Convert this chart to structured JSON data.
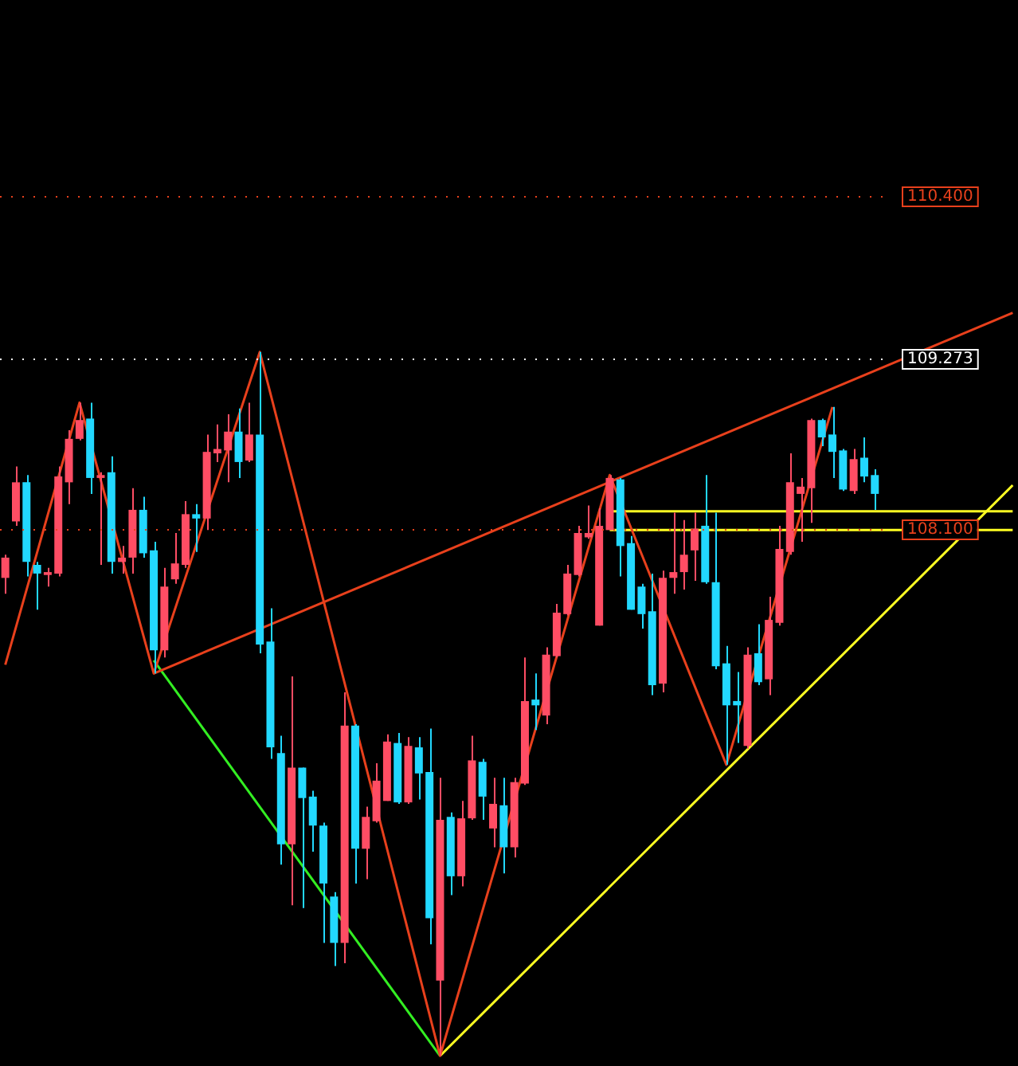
{
  "chart_data": {
    "type": "candlestick",
    "categories": [
      null,
      null,
      null,
      null,
      null,
      null,
      null,
      null,
      null,
      null,
      null,
      null,
      null,
      null,
      null,
      null,
      null,
      null,
      null,
      null,
      null,
      null,
      null,
      null,
      null,
      null,
      null,
      null,
      null,
      null,
      null,
      null,
      null,
      null,
      null,
      null,
      null,
      null,
      null,
      null,
      null,
      null,
      null,
      null,
      null,
      null,
      null,
      null,
      null,
      null,
      null,
      null,
      null,
      null,
      null,
      null,
      null,
      null,
      null,
      null,
      null,
      null,
      null,
      null,
      null,
      null,
      null,
      null,
      null,
      null,
      null,
      null,
      null,
      null,
      null,
      null,
      null,
      null,
      null,
      null,
      null,
      null,
      null,
      null,
      null,
      null,
      null,
      null,
      null,
      null,
      null,
      null,
      null,
      null,
      null,
      null
    ],
    "ohlc": [
      [
        107.76,
        107.92,
        107.65,
        107.9
      ],
      [
        108.15,
        108.53,
        108.12,
        108.42
      ],
      [
        108.42,
        108.47,
        107.77,
        107.87
      ],
      [
        107.85,
        107.87,
        107.54,
        107.79
      ],
      [
        107.78,
        107.83,
        107.7,
        107.8
      ],
      [
        107.79,
        108.53,
        107.77,
        108.46
      ],
      [
        108.42,
        108.78,
        108.27,
        108.72
      ],
      [
        108.72,
        108.97,
        108.71,
        108.85
      ],
      [
        108.86,
        108.97,
        108.34,
        108.45
      ],
      [
        108.45,
        108.49,
        107.85,
        108.47
      ],
      [
        108.49,
        108.6,
        107.79,
        107.87
      ],
      [
        107.87,
        107.98,
        107.79,
        107.9
      ],
      [
        107.9,
        108.38,
        107.79,
        108.23
      ],
      [
        108.23,
        108.32,
        107.9,
        107.93
      ],
      [
        107.95,
        108.01,
        107.1,
        107.26
      ],
      [
        107.26,
        107.83,
        107.21,
        107.7
      ],
      [
        107.75,
        108.07,
        107.72,
        107.86
      ],
      [
        107.85,
        108.29,
        107.83,
        108.2
      ],
      [
        108.2,
        108.27,
        107.94,
        108.17
      ],
      [
        108.17,
        108.75,
        108.09,
        108.63
      ],
      [
        108.62,
        108.82,
        108.56,
        108.65
      ],
      [
        108.64,
        108.89,
        108.42,
        108.77
      ],
      [
        108.77,
        108.93,
        108.45,
        108.56
      ],
      [
        108.57,
        108.97,
        108.56,
        108.75
      ],
      [
        108.75,
        109.32,
        107.24,
        107.3
      ],
      [
        107.32,
        107.55,
        106.51,
        106.59
      ],
      [
        106.55,
        106.67,
        105.78,
        105.92
      ],
      [
        105.92,
        107.08,
        105.5,
        106.45
      ],
      [
        106.45,
        106.45,
        105.48,
        106.24
      ],
      [
        106.25,
        106.29,
        105.87,
        106.05
      ],
      [
        106.05,
        106.07,
        105.24,
        105.65
      ],
      [
        105.56,
        105.59,
        105.08,
        105.24
      ],
      [
        105.24,
        106.97,
        105.1,
        106.74
      ],
      [
        106.74,
        106.75,
        105.65,
        105.89
      ],
      [
        105.89,
        106.18,
        105.68,
        106.11
      ],
      [
        106.08,
        106.48,
        106.07,
        106.36
      ],
      [
        106.22,
        106.68,
        106.22,
        106.63
      ],
      [
        106.62,
        106.69,
        106.2,
        106.21
      ],
      [
        106.21,
        106.66,
        106.2,
        106.6
      ],
      [
        106.59,
        106.66,
        106.23,
        106.41
      ],
      [
        106.42,
        106.72,
        105.23,
        105.41
      ],
      [
        104.98,
        106.38,
        104.46,
        106.09
      ],
      [
        106.11,
        106.14,
        105.57,
        105.7
      ],
      [
        105.7,
        106.22,
        105.63,
        106.1
      ],
      [
        106.1,
        106.67,
        106.09,
        106.5
      ],
      [
        106.49,
        106.51,
        106.09,
        106.25
      ],
      [
        106.03,
        106.38,
        105.9,
        106.2
      ],
      [
        106.19,
        106.38,
        105.72,
        105.9
      ],
      [
        105.9,
        106.38,
        105.83,
        106.35
      ],
      [
        106.34,
        107.21,
        106.33,
        106.91
      ],
      [
        106.92,
        107.1,
        106.71,
        106.88
      ],
      [
        106.81,
        107.28,
        106.75,
        107.23
      ],
      [
        107.22,
        107.58,
        107.21,
        107.52
      ],
      [
        107.51,
        107.85,
        107.5,
        107.79
      ],
      [
        107.78,
        108.12,
        107.77,
        108.07
      ],
      [
        108.04,
        108.26,
        108.03,
        108.07
      ],
      [
        107.43,
        108.24,
        107.43,
        108.12
      ],
      [
        108.09,
        108.47,
        108.09,
        108.45
      ],
      [
        108.44,
        108.45,
        107.77,
        107.98
      ],
      [
        108.0,
        108.05,
        107.54,
        107.54
      ],
      [
        107.7,
        107.72,
        107.41,
        107.51
      ],
      [
        107.53,
        107.79,
        106.95,
        107.02
      ],
      [
        107.03,
        107.81,
        106.97,
        107.76
      ],
      [
        107.76,
        108.21,
        107.65,
        107.8
      ],
      [
        107.8,
        108.16,
        107.68,
        107.92
      ],
      [
        107.95,
        108.21,
        107.74,
        108.1
      ],
      [
        108.12,
        108.47,
        107.72,
        107.73
      ],
      [
        107.73,
        108.21,
        107.13,
        107.15
      ],
      [
        107.17,
        107.29,
        106.47,
        106.88
      ],
      [
        106.91,
        107.11,
        106.62,
        106.88
      ],
      [
        106.6,
        107.28,
        106.58,
        107.23
      ],
      [
        107.24,
        107.44,
        107.02,
        107.04
      ],
      [
        107.06,
        107.63,
        106.95,
        107.47
      ],
      [
        107.45,
        108.12,
        107.43,
        107.96
      ],
      [
        107.94,
        108.62,
        107.92,
        108.42
      ],
      [
        108.34,
        108.45,
        108.01,
        108.39
      ],
      [
        108.38,
        108.86,
        108.14,
        108.85
      ],
      [
        108.85,
        108.86,
        108.67,
        108.73
      ],
      [
        108.75,
        108.94,
        108.45,
        108.63
      ],
      [
        108.64,
        108.65,
        108.36,
        108.37
      ],
      [
        108.36,
        108.65,
        108.34,
        108.58
      ],
      [
        108.59,
        108.73,
        108.42,
        108.46
      ],
      [
        108.47,
        108.51,
        108.23,
        108.34
      ],
      null,
      null,
      null,
      null,
      null,
      null,
      null,
      null,
      null,
      null,
      null,
      null,
      null
    ],
    "colors": [
      "#ff4d64",
      "#ff4d64",
      "#22d8ff",
      "#22d8ff",
      "#ff4d64",
      "#ff4d64",
      "#ff4d64",
      "#ff4d64",
      "#22d8ff",
      "#ff4d64",
      "#22d8ff",
      "#ff4d64",
      "#ff4d64",
      "#22d8ff",
      "#22d8ff",
      "#ff4d64",
      "#ff4d64",
      "#ff4d64",
      "#22d8ff",
      "#ff4d64",
      "#ff4d64",
      "#ff4d64",
      "#22d8ff",
      "#ff4d64",
      "#22d8ff",
      "#22d8ff",
      "#22d8ff",
      "#ff4d64",
      "#22d8ff",
      "#22d8ff",
      "#22d8ff",
      "#22d8ff",
      "#ff4d64",
      "#22d8ff",
      "#ff4d64",
      "#ff4d64",
      "#ff4d64",
      "#22d8ff",
      "#ff4d64",
      "#22d8ff",
      "#22d8ff",
      "#ff4d64",
      "#22d8ff",
      "#ff4d64",
      "#ff4d64",
      "#22d8ff",
      "#ff4d64",
      "#22d8ff",
      "#ff4d64",
      "#ff4d64",
      "#22d8ff",
      "#ff4d64",
      "#ff4d64",
      "#ff4d64",
      "#ff4d64",
      "#ff4d64",
      "#ff4d64",
      "#ff4d64",
      "#22d8ff",
      "#22d8ff",
      "#22d8ff",
      "#22d8ff",
      "#ff4d64",
      "#ff4d64",
      "#ff4d64",
      "#ff4d64",
      "#22d8ff",
      "#22d8ff",
      "#22d8ff",
      "#22d8ff",
      "#ff4d64",
      "#22d8ff",
      "#ff4d64",
      "#ff4d64",
      "#ff4d64",
      "#ff4d64",
      "#ff4d64",
      "#22d8ff",
      "#22d8ff",
      "#22d8ff",
      "#ff4d64",
      "#22d8ff",
      "#22d8ff",
      null,
      null,
      null,
      null,
      null,
      null,
      null,
      null,
      null,
      null,
      null,
      null,
      null
    ],
    "series": [
      {
        "type": "line",
        "color": "#e8401c",
        "values": [
          107.16,
          null,
          null,
          null,
          null,
          null,
          null,
          108.97,
          null,
          null,
          null,
          null,
          null,
          null,
          107.1,
          null,
          null,
          null,
          null,
          null,
          null,
          null,
          null,
          null,
          109.32,
          null,
          null,
          null,
          null,
          null,
          null,
          null,
          null,
          null,
          null,
          null,
          null,
          null,
          null,
          null,
          null,
          104.46,
          null,
          null,
          null,
          null,
          null,
          null,
          null,
          null,
          null,
          null,
          null,
          null,
          null,
          null,
          null,
          108.47,
          null,
          null,
          null,
          null,
          null,
          null,
          null,
          null,
          null,
          null,
          106.47,
          null,
          null,
          null,
          null,
          null,
          null,
          null,
          null,
          null,
          108.94,
          null,
          null,
          null,
          null,
          null,
          null,
          null,
          null,
          null,
          null,
          null,
          null,
          null,
          null,
          null,
          null,
          null
        ]
      },
      {
        "type": "line",
        "color": "#e8401c",
        "values": [
          null,
          null,
          null,
          null,
          null,
          null,
          null,
          null,
          null,
          null,
          null,
          null,
          null,
          null,
          107.1,
          null,
          null,
          null,
          null,
          null,
          null,
          null,
          null,
          null,
          null,
          null,
          null,
          null,
          null,
          null,
          null,
          null,
          null,
          null,
          null,
          null,
          null,
          null,
          null,
          null,
          null,
          null,
          null,
          null,
          null,
          null,
          null,
          null,
          null,
          null,
          null,
          null,
          null,
          null,
          null,
          null,
          null,
          null,
          null,
          null,
          null,
          null,
          null,
          null,
          null,
          null,
          null,
          null,
          null,
          null,
          null,
          null,
          null,
          null,
          null,
          null,
          null,
          null,
          null,
          null,
          null,
          null,
          null,
          null,
          null,
          null,
          null,
          null,
          null,
          null,
          null,
          null,
          null,
          null,
          null,
          109.59
        ]
      },
      {
        "type": "line",
        "color": "#33ee22",
        "values": [
          null,
          null,
          null,
          null,
          null,
          null,
          null,
          null,
          null,
          null,
          null,
          null,
          null,
          null,
          107.19,
          null,
          null,
          null,
          null,
          null,
          null,
          null,
          null,
          null,
          null,
          null,
          null,
          null,
          null,
          null,
          null,
          null,
          null,
          null,
          null,
          null,
          null,
          null,
          null,
          null,
          null,
          104.46,
          null,
          null,
          null,
          null,
          null,
          null,
          null,
          null,
          null,
          null,
          null,
          null,
          null,
          null,
          null,
          null,
          null,
          null,
          null,
          null,
          null,
          null,
          null,
          null,
          null,
          null,
          null,
          null,
          null,
          null,
          null,
          null,
          null,
          null,
          null,
          null,
          null,
          null,
          null,
          null,
          null,
          null,
          null,
          null,
          null,
          null,
          null,
          null,
          null,
          null,
          null,
          null,
          null,
          null
        ]
      },
      {
        "type": "line",
        "color": "#ffff22",
        "values": [
          null,
          null,
          null,
          null,
          null,
          null,
          null,
          null,
          null,
          null,
          null,
          null,
          null,
          null,
          null,
          null,
          null,
          null,
          null,
          null,
          null,
          null,
          null,
          null,
          null,
          null,
          null,
          null,
          null,
          null,
          null,
          null,
          null,
          null,
          null,
          null,
          null,
          null,
          null,
          null,
          null,
          104.46,
          null,
          null,
          null,
          null,
          null,
          null,
          null,
          null,
          null,
          null,
          null,
          null,
          null,
          null,
          null,
          null,
          null,
          null,
          null,
          null,
          null,
          null,
          null,
          null,
          null,
          null,
          null,
          null,
          null,
          null,
          null,
          null,
          null,
          null,
          null,
          null,
          null,
          null,
          null,
          null,
          null,
          null,
          null,
          null,
          null,
          null,
          null,
          null,
          null,
          null,
          null,
          null,
          null,
          108.4
        ]
      },
      {
        "type": "line",
        "color": "#ffff22",
        "values": [
          null,
          null,
          null,
          null,
          null,
          null,
          null,
          null,
          null,
          null,
          null,
          null,
          null,
          null,
          null,
          null,
          null,
          null,
          null,
          null,
          null,
          null,
          null,
          null,
          null,
          null,
          null,
          null,
          null,
          null,
          null,
          null,
          null,
          null,
          null,
          null,
          null,
          null,
          null,
          null,
          null,
          null,
          null,
          null,
          null,
          null,
          null,
          null,
          null,
          null,
          null,
          null,
          null,
          null,
          null,
          null,
          null,
          108.22,
          null,
          null,
          null,
          null,
          null,
          null,
          null,
          null,
          null,
          null,
          null,
          null,
          null,
          null,
          null,
          null,
          null,
          null,
          null,
          null,
          null,
          null,
          null,
          null,
          null,
          null,
          null,
          null,
          null,
          null,
          null,
          null,
          null,
          null,
          null,
          null,
          null,
          108.22
        ]
      },
      {
        "type": "line",
        "color": "#ffff22",
        "values": [
          null,
          null,
          null,
          null,
          null,
          null,
          null,
          null,
          null,
          null,
          null,
          null,
          null,
          null,
          null,
          null,
          null,
          null,
          null,
          null,
          null,
          null,
          null,
          null,
          null,
          null,
          null,
          null,
          null,
          null,
          null,
          null,
          null,
          null,
          null,
          null,
          null,
          null,
          null,
          null,
          null,
          null,
          null,
          null,
          null,
          null,
          null,
          null,
          null,
          null,
          null,
          null,
          null,
          null,
          null,
          null,
          null,
          108.09,
          null,
          null,
          null,
          null,
          null,
          null,
          null,
          null,
          null,
          null,
          null,
          null,
          null,
          null,
          null,
          null,
          null,
          null,
          null,
          null,
          null,
          null,
          null,
          null,
          null,
          null,
          null,
          null,
          null,
          null,
          null,
          null,
          null,
          null,
          null,
          null,
          null,
          108.09
        ]
      }
    ],
    "ylim": [
      104.39,
      111.75
    ],
    "ref_lines": [
      {
        "axis": "y",
        "value": 110.4,
        "label": "110.400",
        "color": "#e8401c",
        "line_style": "dotted"
      },
      {
        "axis": "y",
        "value": 109.273,
        "label": "109.273",
        "color": "#ffffff",
        "line_style": "dotted"
      },
      {
        "axis": "y",
        "value": 108.1,
        "label": "108.100",
        "color": "#e8401c",
        "line_style": "dotted"
      }
    ]
  }
}
